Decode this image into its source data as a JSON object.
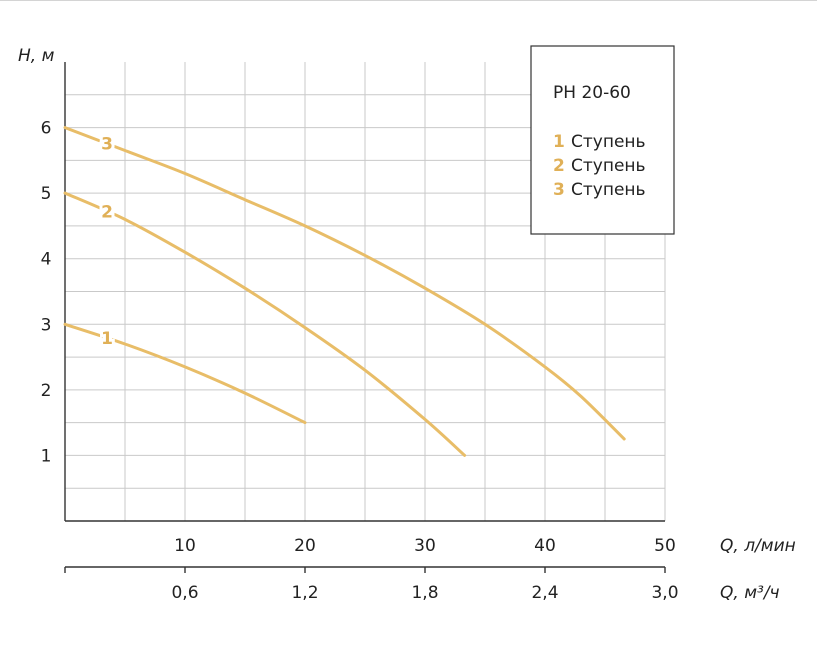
{
  "chart_data": {
    "type": "line",
    "title": "PH 20-60",
    "ylabel": "H, м",
    "xlabel": "Q, л/мин",
    "x2label": "Q, м³/ч",
    "xlim": [
      0,
      50
    ],
    "ylim": [
      0,
      7
    ],
    "x_ticks": [
      10,
      20,
      30,
      40,
      50
    ],
    "y_ticks": [
      1,
      2,
      3,
      4,
      5,
      6
    ],
    "x2_ticks": [
      "0,6",
      "1,2",
      "1,8",
      "2,4",
      "3,0"
    ],
    "grid": true,
    "legend_position": "top-right",
    "series_color": "#e8bd68",
    "label_color": "#e0b057",
    "series": [
      {
        "name": "Ступень",
        "label": "1",
        "x": [
          0,
          5,
          10,
          15,
          20
        ],
        "y": [
          3.0,
          2.7,
          2.35,
          1.95,
          1.5
        ]
      },
      {
        "name": "Ступень",
        "label": "2",
        "x": [
          0,
          5,
          10,
          15,
          20,
          25,
          30,
          33.3
        ],
        "y": [
          5.0,
          4.6,
          4.1,
          3.55,
          2.95,
          2.3,
          1.55,
          1.0
        ]
      },
      {
        "name": "Ступень",
        "label": "3",
        "x": [
          0,
          5,
          10,
          15,
          20,
          25,
          30,
          35,
          40,
          43,
          46.6
        ],
        "y": [
          6.0,
          5.65,
          5.3,
          4.9,
          4.5,
          4.05,
          3.55,
          3.0,
          2.35,
          1.9,
          1.25
        ]
      }
    ]
  }
}
